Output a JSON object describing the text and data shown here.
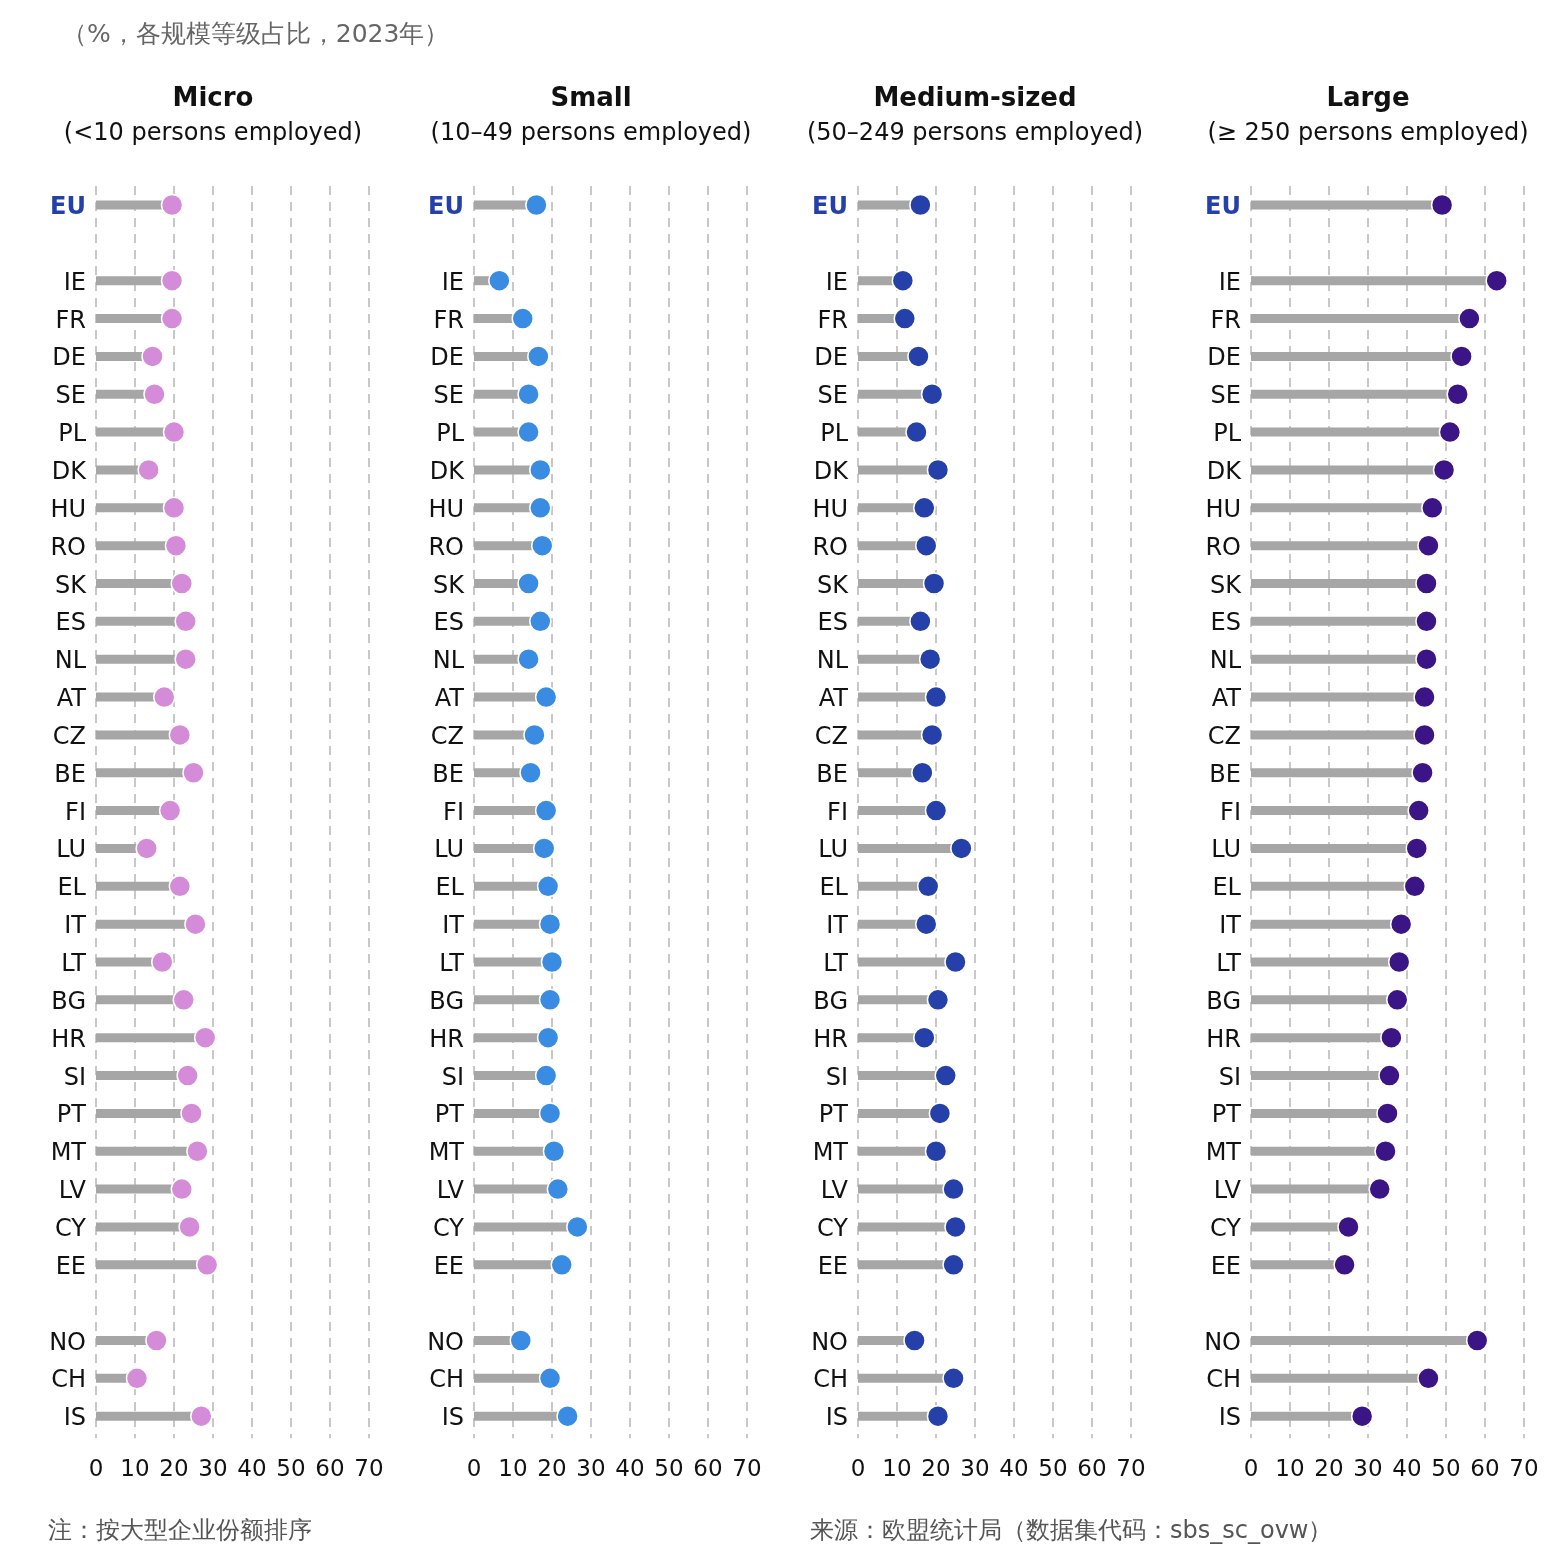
{
  "chart_data": [
    {
      "type": "lollipop",
      "title": "Micro",
      "subtitle": "(<10 persons employed)",
      "annotations": [
        "（%，各规模等级占比，2023年）",
        "注：按大型企业份额排序"
      ],
      "categories": [
        "EU",
        null,
        "IE",
        "FR",
        "DE",
        "SE",
        "PL",
        "DK",
        "HU",
        "RO",
        "SK",
        "ES",
        "NL",
        "AT",
        "CZ",
        "BE",
        "FI",
        "LU",
        "EL",
        "IT",
        "LT",
        "BG",
        "HR",
        "SI",
        "PT",
        "MT",
        "LV",
        "CY",
        "EE",
        null,
        "NO",
        "CH",
        "IS"
      ],
      "series": [
        {
          "color": "#d58cd8",
          "values": [
            19.5,
            null,
            19.5,
            19.5,
            14.5,
            15,
            20,
            13.5,
            20,
            20.5,
            22,
            23,
            23,
            17.5,
            21.5,
            25,
            19,
            13,
            21.5,
            25.5,
            17,
            22.5,
            28,
            23.5,
            24.5,
            26,
            22,
            24,
            28.5,
            null,
            15.5,
            10.5,
            27
          ]
        }
      ],
      "orientation": "horizontal",
      "xlim": [
        0,
        70
      ],
      "xticks": [
        0,
        10,
        20,
        30,
        40,
        50,
        60,
        70
      ],
      "grid": "x",
      "marker": "circle"
    },
    {
      "type": "lollipop",
      "title": "Small",
      "subtitle": "(10–49 persons employed)",
      "categories": [
        "EU",
        null,
        "IE",
        "FR",
        "DE",
        "SE",
        "PL",
        "DK",
        "HU",
        "RO",
        "SK",
        "ES",
        "NL",
        "AT",
        "CZ",
        "BE",
        "FI",
        "LU",
        "EL",
        "IT",
        "LT",
        "BG",
        "HR",
        "SI",
        "PT",
        "MT",
        "LV",
        "CY",
        "EE",
        null,
        "NO",
        "CH",
        "IS"
      ],
      "series": [
        {
          "color": "#3a8ce3",
          "values": [
            16,
            null,
            6.5,
            12.5,
            16.5,
            14,
            14,
            17,
            17,
            17.5,
            14,
            17,
            14,
            18.5,
            15.5,
            14.5,
            18.5,
            18,
            19,
            19.5,
            20,
            19.5,
            19,
            18.5,
            19.5,
            20.5,
            21.5,
            26.5,
            22.5,
            null,
            12,
            19.5,
            24
          ]
        }
      ],
      "orientation": "horizontal",
      "xlim": [
        0,
        70
      ],
      "xticks": [
        0,
        10,
        20,
        30,
        40,
        50,
        60,
        70
      ],
      "grid": "x",
      "marker": "circle"
    },
    {
      "type": "lollipop",
      "title": "Medium-sized",
      "subtitle": "(50–249 persons employed)",
      "annotations": [
        "来源：欧盟统计局（数据集代码：sbs_sc_ovw）"
      ],
      "categories": [
        "EU",
        null,
        "IE",
        "FR",
        "DE",
        "SE",
        "PL",
        "DK",
        "HU",
        "RO",
        "SK",
        "ES",
        "NL",
        "AT",
        "CZ",
        "BE",
        "FI",
        "LU",
        "EL",
        "IT",
        "LT",
        "BG",
        "HR",
        "SI",
        "PT",
        "MT",
        "LV",
        "CY",
        "EE",
        null,
        "NO",
        "CH",
        "IS"
      ],
      "series": [
        {
          "color": "#2540a8",
          "values": [
            16,
            null,
            11.5,
            12,
            15.5,
            19,
            15,
            20.5,
            17,
            17.5,
            19.5,
            16,
            18.5,
            20,
            19,
            16.5,
            20,
            26.5,
            18,
            17.5,
            25,
            20.5,
            17,
            22.5,
            21,
            20,
            24.5,
            25,
            24.5,
            null,
            14.5,
            24.5,
            20.5
          ]
        }
      ],
      "orientation": "horizontal",
      "xlim": [
        0,
        70
      ],
      "xticks": [
        0,
        10,
        20,
        30,
        40,
        50,
        60,
        70
      ],
      "grid": "x",
      "marker": "circle"
    },
    {
      "type": "lollipop",
      "title": "Large",
      "subtitle": "(≥ 250 persons employed)",
      "categories": [
        "EU",
        null,
        "IE",
        "FR",
        "DE",
        "SE",
        "PL",
        "DK",
        "HU",
        "RO",
        "SK",
        "ES",
        "NL",
        "AT",
        "CZ",
        "BE",
        "FI",
        "LU",
        "EL",
        "IT",
        "LT",
        "BG",
        "HR",
        "SI",
        "PT",
        "MT",
        "LV",
        "CY",
        "EE",
        null,
        "NO",
        "CH",
        "IS"
      ],
      "series": [
        {
          "color": "#3b1585",
          "values": [
            49,
            null,
            63,
            56,
            54,
            53,
            51,
            49.5,
            46.5,
            45.5,
            45,
            45,
            45,
            44.5,
            44.5,
            44,
            43,
            42.5,
            42,
            38.5,
            38,
            37.5,
            36,
            35.5,
            35,
            34.5,
            33,
            25,
            24,
            null,
            58,
            45.5,
            28.5
          ]
        }
      ],
      "orientation": "horizontal",
      "xlim": [
        0,
        70
      ],
      "xticks": [
        0,
        10,
        20,
        30,
        40,
        50,
        60,
        70
      ],
      "grid": "x",
      "marker": "circle"
    }
  ]
}
